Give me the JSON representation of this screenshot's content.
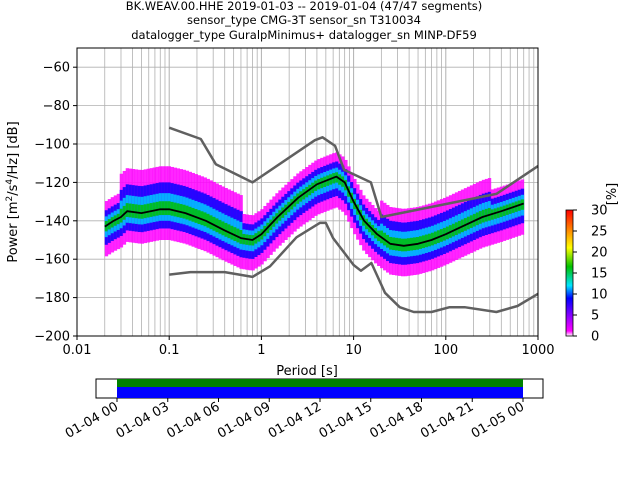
{
  "chart_data": {
    "type": "heatmap",
    "title_lines": [
      "BK.WEAV.00.HHE   2019-01-03 -- 2019-01-04  (47/47 segments)",
      "sensor_type CMG-3T sensor_sn T310034",
      "datalogger_type GuralpMinimus+ datalogger_sn MINP-DF59"
    ],
    "xlabel": "Period [s]",
    "ylabel_parts": [
      "Power [m",
      "2",
      "/s",
      "4",
      "/Hz] [dB]"
    ],
    "x_scale": "log",
    "xlim": [
      0.01,
      1000
    ],
    "ylim": [
      -200,
      -50
    ],
    "x_tick_labels": [
      "0.01",
      "0.1",
      "1",
      "10",
      "100",
      "1000"
    ],
    "y_tick_labels": [
      "−60",
      "−80",
      "−100",
      "−120",
      "−140",
      "−160",
      "−180",
      "−200"
    ],
    "y_ticks": [
      -60,
      -80,
      -100,
      -120,
      -140,
      -160,
      -180,
      -200
    ],
    "grid": true,
    "colorbar": {
      "label": "[%]",
      "range": [
        0,
        30
      ],
      "ticks": [
        0,
        5,
        10,
        15,
        20,
        25,
        30
      ],
      "colormap": [
        "#ffffff",
        "#ff00ff",
        "#0000ff",
        "#00e5ff",
        "#00c000",
        "#ffff00",
        "#ff8000",
        "#ff0000"
      ]
    },
    "series": [
      {
        "role": "nhnm",
        "color": "#606060",
        "points": [
          [
            0.1,
            -91.5
          ],
          [
            0.22,
            -97.4
          ],
          [
            0.32,
            -110.5
          ],
          [
            0.8,
            -120
          ],
          [
            3.8,
            -98
          ],
          [
            4.6,
            -96.5
          ],
          [
            6.3,
            -101
          ],
          [
            7.9,
            -113.5
          ],
          [
            15.4,
            -120
          ],
          [
            20,
            -138
          ],
          [
            354,
            -126
          ],
          [
            1000,
            -111.5
          ]
        ]
      },
      {
        "role": "nlnm",
        "color": "#606060",
        "points": [
          [
            0.1,
            -168
          ],
          [
            0.17,
            -166.7
          ],
          [
            0.4,
            -166.7
          ],
          [
            0.8,
            -169.2
          ],
          [
            1.24,
            -163.7
          ],
          [
            2.4,
            -148.6
          ],
          [
            4.3,
            -141.1
          ],
          [
            5,
            -141.1
          ],
          [
            6,
            -149
          ],
          [
            10,
            -163
          ],
          [
            12,
            -166
          ],
          [
            15.6,
            -162
          ],
          [
            21.9,
            -177.5
          ],
          [
            31.6,
            -185
          ],
          [
            45,
            -187.5
          ],
          [
            70,
            -187.5
          ],
          [
            110,
            -185
          ],
          [
            160,
            -185
          ],
          [
            354,
            -187.5
          ],
          [
            600,
            -184.4
          ],
          [
            1000,
            -178
          ]
        ]
      },
      {
        "role": "mean",
        "color": "#000000",
        "points": [
          [
            0.02,
            -143
          ],
          [
            0.025,
            -140
          ],
          [
            0.03,
            -138
          ],
          [
            0.035,
            -135
          ],
          [
            0.05,
            -136
          ],
          [
            0.08,
            -134
          ],
          [
            0.1,
            -134
          ],
          [
            0.15,
            -136
          ],
          [
            0.25,
            -140
          ],
          [
            0.4,
            -145
          ],
          [
            0.6,
            -149
          ],
          [
            0.8,
            -150
          ],
          [
            1.0,
            -147
          ],
          [
            1.5,
            -138
          ],
          [
            2.5,
            -128
          ],
          [
            4,
            -121
          ],
          [
            6.5,
            -117
          ],
          [
            8,
            -120
          ],
          [
            10,
            -130
          ],
          [
            13,
            -140
          ],
          [
            18,
            -147
          ],
          [
            25,
            -152
          ],
          [
            35,
            -153
          ],
          [
            50,
            -152
          ],
          [
            70,
            -150
          ],
          [
            100,
            -147
          ],
          [
            150,
            -143
          ],
          [
            250,
            -138
          ],
          [
            400,
            -135
          ],
          [
            700,
            -131
          ]
        ]
      }
    ],
    "timeline": {
      "tick_labels": [
        "01-04 00",
        "01-04 03",
        "01-04 06",
        "01-04 09",
        "01-04 12",
        "01-04 15",
        "01-04 18",
        "01-04 21",
        "01-05 00"
      ],
      "coverage_colors": [
        "#008000",
        "#0000ff"
      ]
    }
  }
}
